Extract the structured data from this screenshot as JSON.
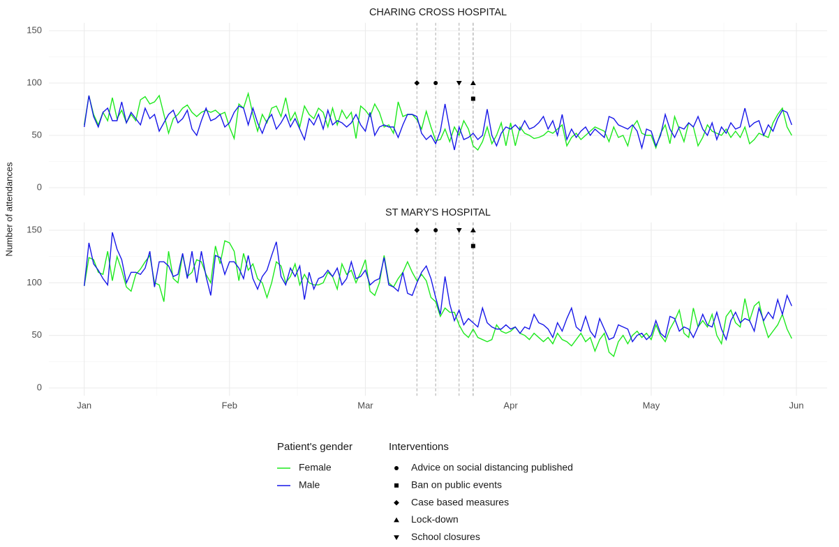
{
  "y_label": "Number of attendances",
  "legend": {
    "gender_title": "Patient's gender",
    "interventions_title": "Interventions",
    "interventions": [
      {
        "name": "Advice on social distancing published",
        "shape": "circle"
      },
      {
        "name": "Ban on public events",
        "shape": "square"
      },
      {
        "name": "Case based measures",
        "shape": "diamond"
      },
      {
        "name": "Lock-down",
        "shape": "triangle-up"
      },
      {
        "name": "School closures",
        "shape": "triangle-down"
      }
    ]
  },
  "chart_data": [
    {
      "type": "line",
      "title": "CHARING CROSS HOSPITAL",
      "x": [
        0,
        1,
        2,
        3,
        4,
        5,
        6,
        7,
        8,
        9,
        10,
        11,
        12,
        13,
        14,
        15,
        16,
        17,
        18,
        19,
        20,
        21,
        22,
        23,
        24,
        25,
        26,
        27,
        28,
        29,
        30,
        31,
        32,
        33,
        34,
        35,
        36,
        37,
        38,
        39,
        40,
        41,
        42,
        43,
        44,
        45,
        46,
        47,
        48,
        49,
        50,
        51,
        52,
        53,
        54,
        55,
        56,
        57,
        58,
        59,
        60,
        61,
        62,
        63,
        64,
        65,
        66,
        67,
        68,
        69,
        70,
        71,
        72,
        73,
        74,
        75,
        76,
        77,
        78,
        79,
        80,
        81,
        82,
        83,
        84,
        85,
        86,
        87,
        88,
        89,
        90,
        91,
        92,
        93,
        94,
        95,
        96,
        97,
        98,
        99,
        100,
        101,
        102,
        103,
        104,
        105,
        106,
        107,
        108,
        109,
        110,
        111,
        112,
        113,
        114,
        115,
        116,
        117,
        118,
        119,
        120,
        121,
        122,
        123,
        124,
        125,
        126,
        127,
        128,
        129,
        130,
        131,
        132,
        133,
        134,
        135,
        136,
        137,
        138,
        139,
        140,
        141,
        142,
        143,
        144,
        145,
        146,
        147,
        148,
        149,
        150,
        151
      ],
      "series": [
        {
          "name": "Female",
          "color": "#1de91d",
          "values": [
            60,
            88,
            70,
            60,
            72,
            64,
            86,
            66,
            74,
            62,
            70,
            64,
            84,
            87,
            80,
            82,
            88,
            70,
            52,
            66,
            70,
            76,
            79,
            72,
            68,
            72,
            74,
            72,
            74,
            70,
            72,
            58,
            47,
            80,
            76,
            90,
            70,
            54,
            70,
            62,
            76,
            78,
            68,
            86,
            64,
            72,
            58,
            78,
            70,
            66,
            76,
            72,
            58,
            76,
            60,
            74,
            66,
            72,
            47,
            78,
            74,
            68,
            80,
            72,
            58,
            60,
            52,
            82,
            68,
            70,
            70,
            65,
            56,
            73,
            58,
            45,
            46,
            56,
            44,
            58,
            50,
            64,
            56,
            40,
            36,
            44,
            58,
            42,
            50,
            62,
            40,
            62,
            40,
            58,
            52,
            50,
            47,
            48,
            50,
            54,
            52,
            56,
            60,
            40,
            48,
            52,
            46,
            50,
            54,
            58,
            56,
            54,
            44,
            58,
            48,
            50,
            40,
            58,
            64,
            52,
            50,
            50,
            38,
            52,
            60,
            42,
            68,
            56,
            44,
            62,
            58,
            40,
            48,
            60,
            54,
            52,
            50,
            56,
            48,
            54,
            48,
            58,
            42,
            46,
            52,
            50,
            48,
            62,
            70,
            76,
            58,
            50
          ]
        },
        {
          "name": "Male",
          "color": "#1717e8",
          "values": [
            58,
            88,
            68,
            58,
            72,
            76,
            64,
            64,
            82,
            62,
            72,
            66,
            60,
            76,
            66,
            70,
            54,
            62,
            70,
            74,
            62,
            66,
            74,
            56,
            50,
            64,
            76,
            64,
            66,
            70,
            58,
            62,
            72,
            78,
            76,
            60,
            76,
            62,
            52,
            64,
            70,
            56,
            62,
            70,
            58,
            66,
            56,
            46,
            66,
            60,
            70,
            56,
            74,
            60,
            64,
            62,
            58,
            62,
            70,
            60,
            54,
            72,
            50,
            58,
            60,
            58,
            58,
            48,
            60,
            70,
            70,
            68,
            52,
            46,
            50,
            42,
            54,
            80,
            56,
            36,
            58,
            46,
            48,
            52,
            46,
            50,
            75,
            50,
            40,
            52,
            58,
            56,
            60,
            55,
            64,
            56,
            58,
            62,
            68,
            56,
            64,
            50,
            70,
            46,
            56,
            48,
            54,
            58,
            50,
            56,
            52,
            48,
            68,
            66,
            60,
            58,
            56,
            60,
            54,
            38,
            56,
            54,
            40,
            50,
            70,
            56,
            48,
            58,
            56,
            62,
            58,
            68,
            56,
            50,
            62,
            46,
            58,
            52,
            62,
            56,
            58,
            76,
            58,
            62,
            64,
            50,
            60,
            54,
            66,
            74,
            72,
            60
          ]
        }
      ],
      "intervention_points": [
        {
          "x": 75,
          "y": 100
        },
        {
          "x": 83,
          "y": 85
        },
        {
          "x": 71,
          "y": 100
        },
        {
          "x": 83,
          "y": 100
        },
        {
          "x": 80,
          "y": 100
        }
      ],
      "xlim": [
        -7.55,
        158.55
      ],
      "xticks": [
        0,
        31,
        60,
        91,
        121,
        152
      ],
      "ylim": [
        -7.5,
        157.5
      ],
      "yticks": [
        0,
        50,
        100,
        150
      ],
      "grid": true
    },
    {
      "type": "line",
      "title": "ST MARY'S HOSPITAL",
      "x": [
        0,
        1,
        2,
        3,
        4,
        5,
        6,
        7,
        8,
        9,
        10,
        11,
        12,
        13,
        14,
        15,
        16,
        17,
        18,
        19,
        20,
        21,
        22,
        23,
        24,
        25,
        26,
        27,
        28,
        29,
        30,
        31,
        32,
        33,
        34,
        35,
        36,
        37,
        38,
        39,
        40,
        41,
        42,
        43,
        44,
        45,
        46,
        47,
        48,
        49,
        50,
        51,
        52,
        53,
        54,
        55,
        56,
        57,
        58,
        59,
        60,
        61,
        62,
        63,
        64,
        65,
        66,
        67,
        68,
        69,
        70,
        71,
        72,
        73,
        74,
        75,
        76,
        77,
        78,
        79,
        80,
        81,
        82,
        83,
        84,
        85,
        86,
        87,
        88,
        89,
        90,
        91,
        92,
        93,
        94,
        95,
        96,
        97,
        98,
        99,
        100,
        101,
        102,
        103,
        104,
        105,
        106,
        107,
        108,
        109,
        110,
        111,
        112,
        113,
        114,
        115,
        116,
        117,
        118,
        119,
        120,
        121,
        122,
        123,
        124,
        125,
        126,
        127,
        128,
        129,
        130,
        131,
        132,
        133,
        134,
        135,
        136,
        137,
        138,
        139,
        140,
        141,
        142,
        143,
        144,
        145,
        146,
        147,
        148,
        149,
        150,
        151
      ],
      "series": [
        {
          "name": "Female",
          "color": "#1de91d",
          "values": [
            97,
            124,
            122,
            110,
            108,
            130,
            102,
            125,
            112,
            96,
            92,
            108,
            113,
            120,
            126,
            100,
            98,
            82,
            130,
            104,
            100,
            127,
            106,
            110,
            122,
            120,
            108,
            100,
            135,
            118,
            140,
            138,
            130,
            102,
            128,
            112,
            118,
            104,
            100,
            86,
            100,
            120,
            116,
            100,
            106,
            118,
            98,
            108,
            100,
            98,
            98,
            100,
            110,
            106,
            94,
            118,
            108,
            112,
            100,
            110,
            122,
            92,
            88,
            100,
            126,
            100,
            96,
            104,
            110,
            120,
            110,
            102,
            108,
            102,
            86,
            82,
            68,
            76,
            72,
            72,
            60,
            52,
            48,
            56,
            48,
            46,
            44,
            46,
            60,
            54,
            52,
            54,
            58,
            52,
            50,
            46,
            52,
            48,
            44,
            48,
            42,
            52,
            46,
            44,
            40,
            46,
            52,
            44,
            48,
            35,
            46,
            52,
            34,
            30,
            44,
            50,
            42,
            50,
            54,
            48,
            52,
            46,
            60,
            50,
            44,
            56,
            64,
            74,
            52,
            48,
            76,
            58,
            64,
            58,
            70,
            50,
            42,
            68,
            74,
            62,
            58,
            85,
            64,
            78,
            82,
            62,
            48,
            54,
            60,
            70,
            56,
            47
          ]
        },
        {
          "name": "Male",
          "color": "#1717e8",
          "values": [
            97,
            138,
            118,
            112,
            104,
            98,
            148,
            132,
            122,
            100,
            110,
            110,
            108,
            114,
            130,
            96,
            120,
            120,
            116,
            106,
            108,
            128,
            104,
            130,
            100,
            130,
            106,
            88,
            126,
            124,
            108,
            120,
            120,
            114,
            104,
            126,
            104,
            94,
            106,
            112,
            126,
            139,
            106,
            98,
            114,
            106,
            116,
            84,
            110,
            94,
            104,
            106,
            112,
            106,
            114,
            98,
            104,
            120,
            104,
            106,
            112,
            98,
            102,
            104,
            124,
            98,
            96,
            92,
            110,
            90,
            88,
            100,
            110,
            116,
            104,
            86,
            70,
            106,
            80,
            64,
            74,
            60,
            66,
            62,
            58,
            76,
            62,
            58,
            56,
            56,
            60,
            56,
            58,
            52,
            58,
            56,
            70,
            62,
            60,
            56,
            48,
            62,
            54,
            66,
            76,
            58,
            54,
            68,
            54,
            48,
            66,
            56,
            46,
            48,
            60,
            58,
            56,
            44,
            50,
            52,
            46,
            50,
            64,
            52,
            48,
            68,
            66,
            54,
            58,
            56,
            48,
            58,
            70,
            60,
            58,
            72,
            56,
            46,
            64,
            72,
            62,
            66,
            64,
            54,
            76,
            64,
            72,
            66,
            84,
            70,
            88,
            78
          ]
        }
      ],
      "intervention_points": [
        {
          "x": 75,
          "y": 150
        },
        {
          "x": 83,
          "y": 135
        },
        {
          "x": 71,
          "y": 150
        },
        {
          "x": 83,
          "y": 150
        },
        {
          "x": 80,
          "y": 150
        }
      ],
      "xlim": [
        -7.55,
        158.55
      ],
      "xticks": [
        {
          "value": 0,
          "label": "Jan"
        },
        {
          "value": 31,
          "label": "Feb"
        },
        {
          "value": 60,
          "label": "Mar"
        },
        {
          "value": 91,
          "label": "Apr"
        },
        {
          "value": 121,
          "label": "May"
        },
        {
          "value": 152,
          "label": "Jun"
        }
      ],
      "ylim": [
        -7.5,
        157.5
      ],
      "yticks": [
        0,
        50,
        100,
        150
      ],
      "grid": true
    }
  ]
}
